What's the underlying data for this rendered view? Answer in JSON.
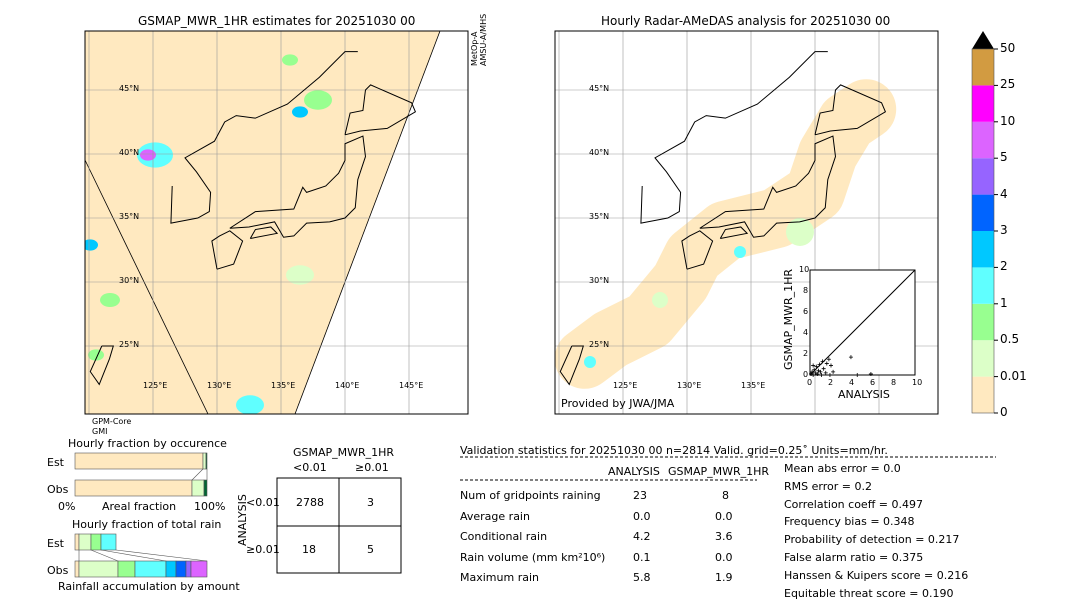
{
  "left_map": {
    "title": "GSMAP_MWR_1HR estimates for 20251030 00",
    "sat_top": "MetOp-A",
    "sat_top2": "AMSU-A/MHS",
    "sat_bottom": "GPM-Core",
    "sat_bottom2": "GMI",
    "lat_labels": [
      "45°N",
      "40°N",
      "35°N",
      "30°N",
      "25°N"
    ],
    "lon_labels": [
      "125°E",
      "130°E",
      "135°E",
      "140°E",
      "145°E"
    ]
  },
  "right_map": {
    "title": "Hourly Radar-AMeDAS analysis for 20251030 00",
    "credit": "Provided by JWA/JMA",
    "lat_labels": [
      "45°N",
      "40°N",
      "35°N",
      "30°N",
      "25°N"
    ],
    "lon_labels": [
      "125°E",
      "130°E",
      "135°E"
    ]
  },
  "colorbar": {
    "labels": [
      "0",
      "0.01",
      "0.5",
      "1",
      "2",
      "3",
      "4",
      "5",
      "10",
      "25",
      "50"
    ],
    "colors": [
      "#ffe9c0",
      "#dcffc8",
      "#98ff90",
      "#60ffff",
      "#00c8ff",
      "#0064ff",
      "#9664ff",
      "#dc64ff",
      "#ff00ff",
      "#d29b41"
    ],
    "extend_color": "#000000"
  },
  "chart_data": [
    {
      "type": "scatter",
      "xlabel": "ANALYSIS",
      "ylabel": "GSMAP_MWR_1HR",
      "xlim": [
        0,
        10
      ],
      "ylim": [
        0,
        10
      ],
      "xticks": [
        "0",
        "2",
        "4",
        "6",
        "8",
        "10"
      ],
      "yticks": [
        "0",
        "2",
        "4",
        "6",
        "8",
        "10"
      ],
      "points": [
        [
          0.1,
          0.1
        ],
        [
          0.2,
          0.3
        ],
        [
          0.3,
          0.0
        ],
        [
          0.4,
          0.5
        ],
        [
          0.5,
          0.2
        ],
        [
          0.6,
          0.8
        ],
        [
          0.7,
          0.1
        ],
        [
          0.8,
          0.4
        ],
        [
          0.9,
          1.0
        ],
        [
          1.0,
          0.3
        ],
        [
          1.1,
          0.0
        ],
        [
          1.2,
          1.3
        ],
        [
          1.3,
          0.6
        ],
        [
          1.5,
          0.2
        ],
        [
          1.6,
          1.1
        ],
        [
          1.8,
          1.5
        ],
        [
          2.0,
          0.9
        ],
        [
          1.9,
          0.0
        ],
        [
          2.2,
          0.3
        ],
        [
          3.9,
          1.7
        ],
        [
          4.5,
          0.0
        ],
        [
          5.8,
          0.1
        ],
        [
          0.3,
          0.9
        ]
      ]
    },
    {
      "type": "bar",
      "title": "Hourly fraction by occurence",
      "categories": [
        "Est",
        "Obs"
      ],
      "xlabel": "Areal fraction",
      "xticks": [
        "0%",
        "100%"
      ],
      "series": [
        {
          "values": [
            99.7,
            0.3
          ]
        },
        {
          "values": [
            99.2,
            0.8
          ]
        }
      ]
    },
    {
      "type": "bar",
      "title": "Hourly fraction of total rain",
      "categories": [
        "Est",
        "Obs"
      ],
      "xlabel": "Rainfall accumulation by amount"
    },
    {
      "type": "table",
      "title": "GSMAP_MWR_1HR",
      "col_labels": [
        "<0.01",
        "≥0.01"
      ],
      "row_title": "ANALYSIS",
      "row_labels": [
        "<0.01",
        "≥0.01"
      ],
      "cells": [
        [
          "2788",
          "3"
        ],
        [
          "18",
          "5"
        ]
      ]
    }
  ],
  "stats": {
    "header": "Validation statistics for 20251030 00  n=2814 Valid. grid=0.25˚ Units=mm/hr.",
    "col1": "ANALYSIS",
    "col2": "GSMAP_MWR_1HR",
    "rows": [
      {
        "label": "Num of gridpoints raining",
        "a": "23",
        "g": "8"
      },
      {
        "label": "Average rain",
        "a": "0.0",
        "g": "0.0"
      },
      {
        "label": "Conditional rain",
        "a": "4.2",
        "g": "3.6"
      },
      {
        "label": "Rain volume (mm km²10⁶)",
        "a": "0.1",
        "g": "0.0"
      },
      {
        "label": "Maximum rain",
        "a": "5.8",
        "g": "1.9"
      }
    ],
    "scores": [
      "Mean abs error =    0.0",
      "RMS error =    0.2",
      "Correlation coeff =  0.497",
      "Frequency bias =  0.348",
      "Probability of detection =  0.217",
      "False alarm ratio =  0.375",
      "Hanssen & Kuipers score =  0.216",
      "Equitable threat score =  0.190"
    ]
  }
}
